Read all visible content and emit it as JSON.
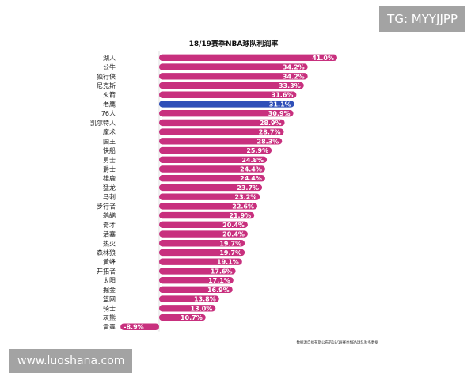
{
  "watermarks": {
    "telegram": "TG: MYYJJPP",
    "site": "www.luoshana.com"
  },
  "colors": {
    "bar": "#c8307e",
    "highlight": "#2f4fb8",
    "axis": "#cccccc"
  },
  "chart_data": {
    "type": "bar",
    "orientation": "horizontal",
    "title": "18/19赛季NBA球队利润率",
    "source": "数据源自福布斯公布的18/19赛季NBA球队财务数据",
    "unit": "%",
    "highlight_category": "老鹰",
    "xlim": [
      -8.9,
      41.0
    ],
    "categories": [
      "湖人",
      "公牛",
      "独行侠",
      "尼克斯",
      "火箭",
      "老鹰",
      "76人",
      "凯尔特人",
      "魔术",
      "国王",
      "快船",
      "勇士",
      "爵士",
      "雄鹿",
      "猛龙",
      "马刺",
      "步行者",
      "鹈鹕",
      "奇才",
      "活塞",
      "热火",
      "森林狼",
      "黄蜂",
      "开拓者",
      "太阳",
      "掘金",
      "篮网",
      "骑士",
      "灰熊",
      "雷霆"
    ],
    "values": [
      41.0,
      34.2,
      34.2,
      33.3,
      31.6,
      31.1,
      30.9,
      28.9,
      28.7,
      28.3,
      25.9,
      24.8,
      24.4,
      24.4,
      23.7,
      23.2,
      22.6,
      21.9,
      20.4,
      20.4,
      19.7,
      19.7,
      19.1,
      17.6,
      17.1,
      16.9,
      13.8,
      13.0,
      10.7,
      -8.9
    ],
    "labels": [
      "41.0%",
      "34.2%",
      "34.2%",
      "33.3%",
      "31.6%",
      "31.1%",
      "30.9%",
      "28.9%",
      "28.7%",
      "28.3%",
      "25.9%",
      "24.8%",
      "24.4%",
      "24.4%",
      "23.7%",
      "23.2%",
      "22.6%",
      "21.9%",
      "20.4%",
      "20.4%",
      "19.7%",
      "19.7%",
      "19.1%",
      "17.6%",
      "17.1%",
      "16.9%",
      "13.8%",
      "13.0%",
      "10.7%",
      "-8.9%"
    ]
  }
}
